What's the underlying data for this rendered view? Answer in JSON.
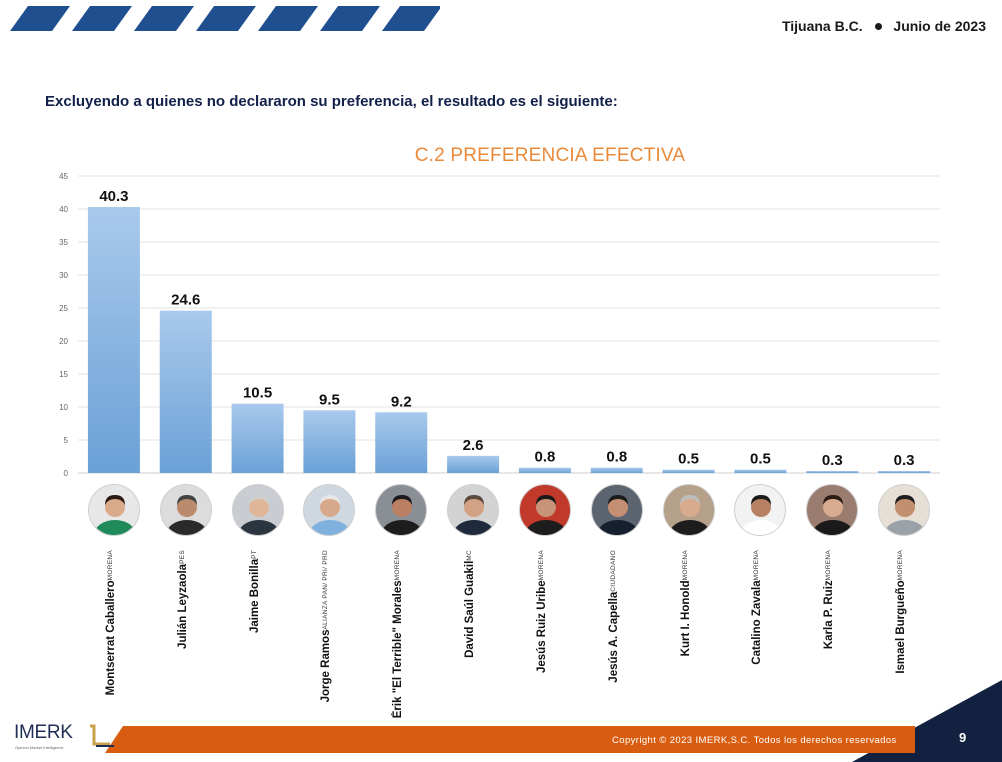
{
  "header": {
    "location": "Tijuana B.C.",
    "date": "Junio de 2023",
    "stripe_color": "#1f4f8f"
  },
  "subtitle": "Excluyendo a quienes no declararon su preferencia, el resultado es el siguiente:",
  "chart_data": {
    "type": "bar",
    "title": "C.2 PREFERENCIA EFECTIVA",
    "xlabel": "",
    "ylabel": "",
    "ylim": [
      0,
      45
    ],
    "yticks": [
      0,
      5,
      10,
      15,
      20,
      25,
      30,
      35,
      40,
      45
    ],
    "grid": true,
    "bar_color_top": "#a9c9ec",
    "bar_color_bottom": "#6aa1d6",
    "categories": [
      {
        "name": "Montserrat Caballero",
        "party": "MORENA",
        "value": 40.3,
        "label": "40.3"
      },
      {
        "name": "Julián Leyzaola",
        "party": "PES",
        "value": 24.6,
        "label": "24.6"
      },
      {
        "name": "Jaime Bonilla",
        "party": "PT",
        "value": 10.5,
        "label": "10.5"
      },
      {
        "name": "Jorge Ramos",
        "party": "ALIANZA PAN/ PRI/ PRD",
        "value": 9.5,
        "label": "9.5"
      },
      {
        "name": "Érik \"El Terrible\" Morales",
        "party": "MORENA",
        "value": 9.2,
        "label": "9.2"
      },
      {
        "name": "David Saúl Guakil",
        "party": "MC",
        "value": 2.6,
        "label": "2.6"
      },
      {
        "name": "Jesús Ruiz Uribe",
        "party": "MORENA",
        "value": 0.8,
        "label": "0.8"
      },
      {
        "name": "Jesús A. Capella",
        "party": "CIUDADANO",
        "value": 0.8,
        "label": "0.8"
      },
      {
        "name": "Kurt I. Honold",
        "party": "MORENA",
        "value": 0.5,
        "label": "0.5"
      },
      {
        "name": "Catalino Zavala",
        "party": "MORENA",
        "value": 0.5,
        "label": "0.5"
      },
      {
        "name": "Karla P. Ruiz",
        "party": "MORENA",
        "value": 0.3,
        "label": "0.3"
      },
      {
        "name": "Ismael Burgueño",
        "party": "MORENA",
        "value": 0.3,
        "label": "0.3"
      }
    ]
  },
  "photos": [
    {
      "bg": "#e7e7e7",
      "shirt": "#1f8a5a",
      "hair": "#2a1a12",
      "skin": "#d9a98a"
    },
    {
      "bg": "#dcdcdc",
      "shirt": "#2a2a2a",
      "hair": "#444444",
      "skin": "#b98a6c"
    },
    {
      "bg": "#c9cdd2",
      "shirt": "#2b3540",
      "hair": "#cfcfcf",
      "skin": "#e0b699"
    },
    {
      "bg": "#cfd8e0",
      "shirt": "#7fb0de",
      "hair": "#e6e6e6",
      "skin": "#d7a98c"
    },
    {
      "bg": "#8a8f96",
      "shirt": "#1d1d1d",
      "hair": "#1b1b1b",
      "skin": "#b98063"
    },
    {
      "bg": "#d3d3d3",
      "shirt": "#1f2a3d",
      "hair": "#5a4a40",
      "skin": "#d3a285"
    },
    {
      "bg": "#c0392b",
      "shirt": "#1d1d1d",
      "hair": "#1a1a1a",
      "skin": "#c89477"
    },
    {
      "bg": "#5c6470",
      "shirt": "#16202e",
      "hair": "#1c1c1c",
      "skin": "#c48f73"
    },
    {
      "bg": "#b5a08a",
      "shirt": "#1d1d1d",
      "hair": "#bdbdbd",
      "skin": "#d8aa8e"
    },
    {
      "bg": "#f2f2f2",
      "shirt": "#ffffff",
      "hair": "#1c1c1c",
      "skin": "#b88164"
    },
    {
      "bg": "#9a7d6e",
      "shirt": "#1a1a1a",
      "hair": "#2b1d15",
      "skin": "#d9ab90"
    },
    {
      "bg": "#e6dfd5",
      "shirt": "#9aa2a8",
      "hair": "#1e1e1e",
      "skin": "#c2906f"
    }
  ],
  "logo": {
    "name": "IMERK",
    "tagline": "Opinion Market Intelligence"
  },
  "footer": {
    "copyright": "Copyright © 2023 IMERK,S.C. Todos los derechos reservados",
    "page": "9"
  }
}
